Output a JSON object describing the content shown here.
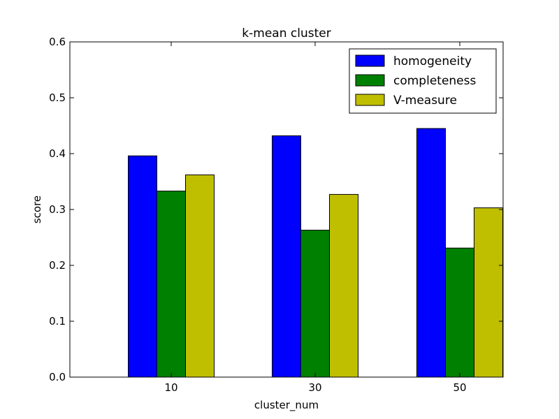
{
  "chart_data": {
    "type": "bar",
    "title": "k-mean cluster",
    "xlabel": "cluster_num",
    "ylabel": "score",
    "categories": [
      "10",
      "30",
      "50"
    ],
    "ylim": [
      0,
      0.6
    ],
    "yticks": [
      "0.0",
      "0.1",
      "0.2",
      "0.3",
      "0.4",
      "0.5",
      "0.6"
    ],
    "grid": false,
    "legend_position": "top-right",
    "series": [
      {
        "name": "homogeneity",
        "color": "#0000ff",
        "values": [
          0.396,
          0.432,
          0.445
        ]
      },
      {
        "name": "completeness",
        "color": "#008000",
        "values": [
          0.333,
          0.263,
          0.231
        ]
      },
      {
        "name": "V-measure",
        "color": "#bfbf00",
        "values": [
          0.362,
          0.327,
          0.303
        ]
      }
    ]
  }
}
